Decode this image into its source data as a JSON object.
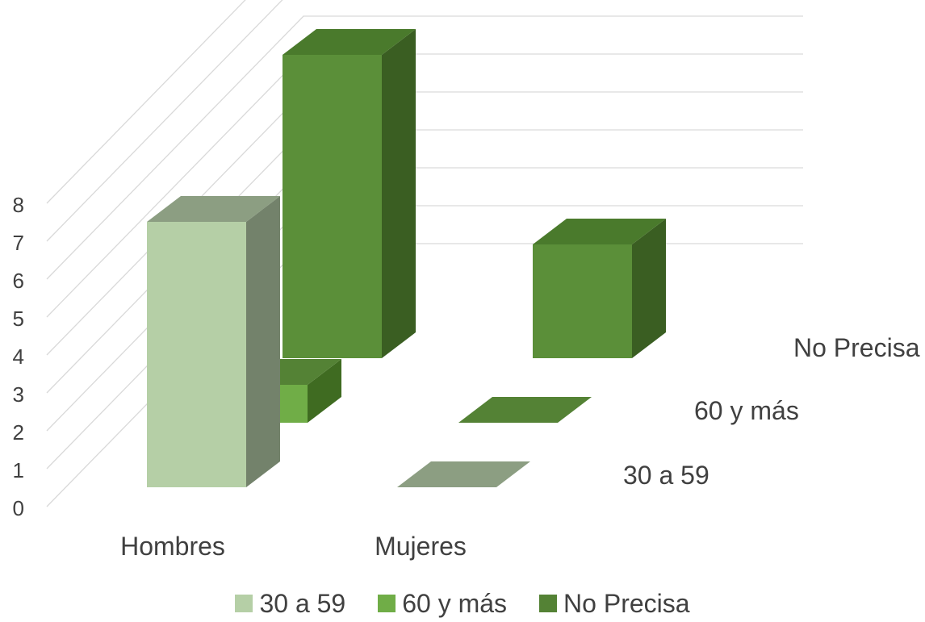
{
  "chart_data": {
    "type": "bar",
    "subtype": "3d-bar",
    "categories": [
      "Hombres",
      "Mujeres"
    ],
    "series": [
      {
        "name": "30 a 59",
        "values": [
          7,
          0
        ],
        "color": "#b5cfa6",
        "side_color": "#73826b",
        "top_color": "#8c9e82"
      },
      {
        "name": "60 y más",
        "values": [
          1,
          0
        ],
        "color": "#70ad47",
        "side_color": "#3f6b21",
        "top_color": "#548235"
      },
      {
        "name": "No Precisa",
        "values": [
          8,
          3
        ],
        "color": "#5b8f39",
        "side_color": "#3a5e22",
        "top_color": "#4a7a2c"
      }
    ],
    "y_ticks": [
      "0",
      "1",
      "2",
      "3",
      "4",
      "5",
      "6",
      "7",
      "8"
    ],
    "ylim": [
      0,
      8
    ],
    "grid": true,
    "legend_position": "bottom"
  }
}
